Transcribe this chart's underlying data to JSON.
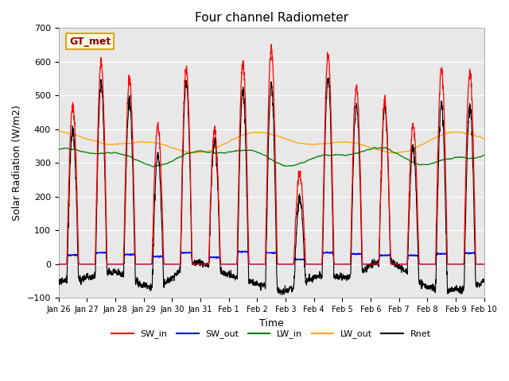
{
  "title": "Four channel Radiometer",
  "xlabel": "Time",
  "ylabel": "Solar Radiation (W/m2)",
  "ylim": [
    -100,
    700
  ],
  "plot_bg_color": "#e8e8e8",
  "legend_label": "GT_met",
  "legend_entries": [
    "SW_in",
    "SW_out",
    "LW_in",
    "LW_out",
    "Rnet"
  ],
  "legend_colors": [
    "red",
    "blue",
    "green",
    "orange",
    "black"
  ],
  "x_tick_labels": [
    "Jan 26",
    "Jan 27",
    "Jan 28",
    "Jan 29",
    "Jan 30",
    "Jan 31",
    "Feb 1",
    "Feb 2",
    "Feb 3",
    "Feb 4",
    "Feb 5",
    "Feb 6",
    "Feb 7",
    "Feb 8",
    "Feb 9",
    "Feb 10"
  ],
  "num_days": 15,
  "title_fontsize": 11,
  "axis_label_fontsize": 9,
  "sw_in_peaks": [
    470,
    600,
    550,
    410,
    580,
    400,
    600,
    640,
    270,
    620,
    530,
    480,
    410,
    580,
    570
  ],
  "lw_in_base": 320,
  "lw_out_base": 360
}
